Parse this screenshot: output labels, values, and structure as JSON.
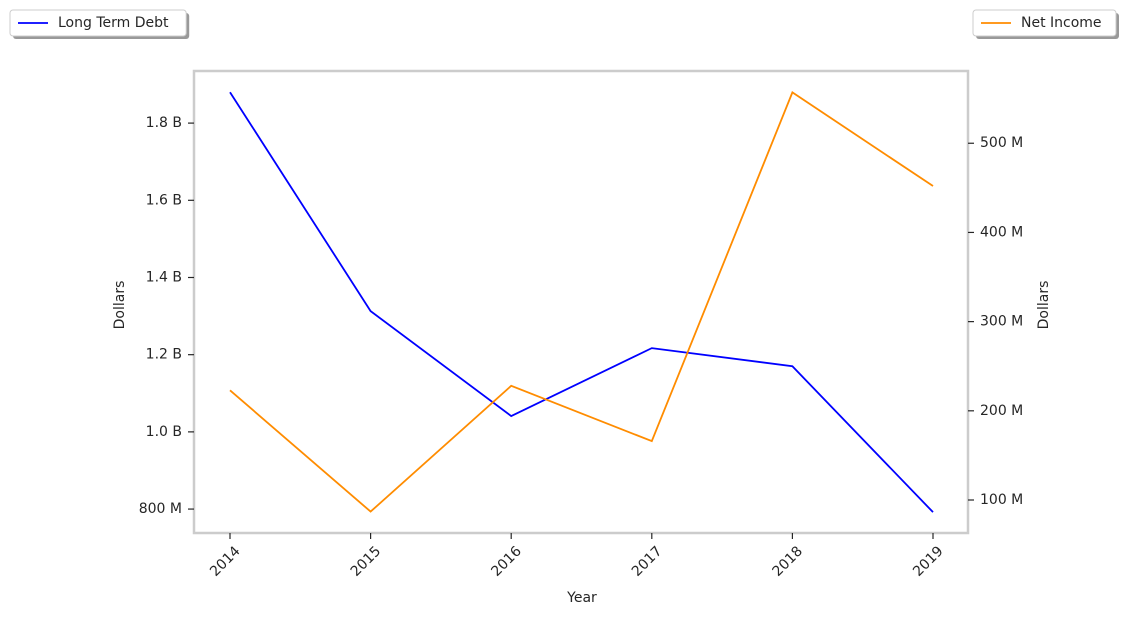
{
  "chart_data": {
    "type": "line",
    "x_label": "Year",
    "y_label": "Dollars",
    "y2_label": "Dollars",
    "categories": [
      "2014",
      "2015",
      "2016",
      "2017",
      "2018",
      "2019"
    ],
    "series": [
      {
        "name": "Long Term Debt",
        "color": "#0000ff",
        "legend_loc": "upper left",
        "values": [
          1880000000,
          1313000000,
          1041000000,
          1217000000,
          1170000000,
          792000000
        ]
      },
      {
        "name": "Net Income",
        "color": "#ff8c00",
        "axis": "y2",
        "legend_loc": "upper right",
        "values": [
          223000000,
          87000000,
          228000000,
          166000000,
          557000000,
          452000000
        ]
      }
    ],
    "ylim": [
      738000000,
      1935000000
    ],
    "yticks": [
      {
        "value": 800000000,
        "label": "800 M"
      },
      {
        "value": 1000000000,
        "label": "1.0 B"
      },
      {
        "value": 1200000000,
        "label": "1.2 B"
      },
      {
        "value": 1400000000,
        "label": "1.4 B"
      },
      {
        "value": 1600000000,
        "label": "1.6 B"
      },
      {
        "value": 1800000000,
        "label": "1.8 B"
      }
    ],
    "y2lim": [
      63000000,
      581000000
    ],
    "y2ticks": [
      {
        "value": 100000000,
        "label": "100 M"
      },
      {
        "value": 200000000,
        "label": "200 M"
      },
      {
        "value": 300000000,
        "label": "300 M"
      },
      {
        "value": 400000000,
        "label": "400 M"
      },
      {
        "value": 500000000,
        "label": "500 M"
      }
    ],
    "grid": false
  }
}
